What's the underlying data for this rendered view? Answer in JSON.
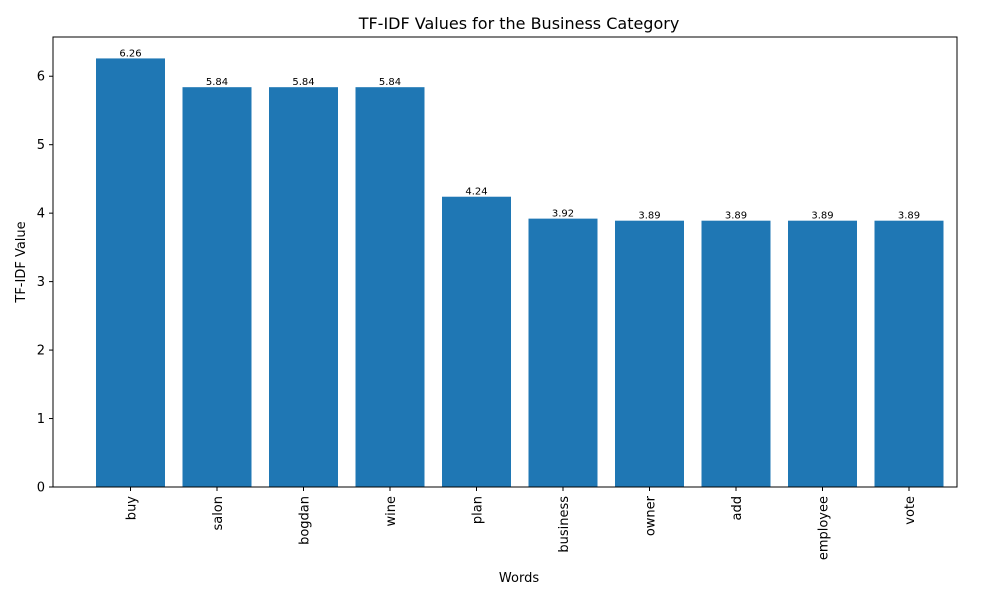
{
  "chart_data": {
    "type": "bar",
    "title": "TF-IDF Values for the Business Category",
    "xlabel": "Words",
    "ylabel": "TF-IDF Value",
    "categories": [
      "buy",
      "salon",
      "bogdan",
      "wine",
      "plan",
      "business",
      "owner",
      "add",
      "employee",
      "vote"
    ],
    "values": [
      6.26,
      5.84,
      5.84,
      5.84,
      4.24,
      3.92,
      3.89,
      3.89,
      3.89,
      3.89
    ],
    "value_labels": [
      "6.26",
      "5.84",
      "5.84",
      "5.84",
      "4.24",
      "3.92",
      "3.89",
      "3.89",
      "3.89",
      "3.89"
    ],
    "yticks": [
      0,
      1,
      2,
      3,
      4,
      5,
      6
    ],
    "ytick_labels": [
      "0",
      "1",
      "2",
      "3",
      "4",
      "5",
      "6"
    ],
    "ylim": [
      0,
      6.573
    ],
    "bar_color": "#1f77b4",
    "grid": false,
    "xtick_rotation": "vertical"
  }
}
